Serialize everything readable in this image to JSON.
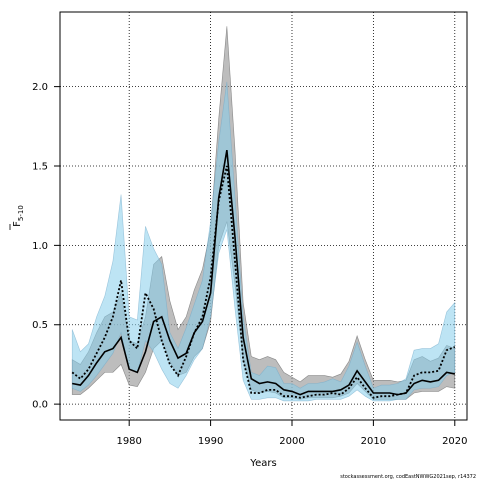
{
  "chart_data": {
    "type": "line",
    "title": "",
    "xlabel": "Years",
    "ylabel_main": "F",
    "ylabel_sub": "5-10",
    "caption": "stockassessment.org, codEastNWWG2021sep, r14372",
    "xlim": [
      1971.5,
      2021.5
    ],
    "ylim": [
      -0.1,
      2.47
    ],
    "xticks": [
      1980,
      1990,
      2000,
      2010,
      2020
    ],
    "yticks": [
      0.0,
      0.5,
      1.0,
      1.5,
      2.0
    ],
    "xtick_labels": [
      "1980",
      "1990",
      "2000",
      "2010",
      "2020"
    ],
    "ytick_labels": [
      "0.0",
      "0.5",
      "1.0",
      "1.5",
      "2.0"
    ],
    "grid": true,
    "x": [
      1973,
      1974,
      1975,
      1976,
      1977,
      1978,
      1979,
      1980,
      1981,
      1982,
      1983,
      1984,
      1985,
      1986,
      1987,
      1988,
      1989,
      1990,
      1991,
      1992,
      1993,
      1994,
      1995,
      1996,
      1997,
      1998,
      1999,
      2000,
      2001,
      2002,
      2003,
      2004,
      2005,
      2006,
      2007,
      2008,
      2009,
      2010,
      2011,
      2012,
      2013,
      2014,
      2015,
      2016,
      2017,
      2018,
      2019,
      2020
    ],
    "colors": {
      "series1_line": "#000000",
      "series1_band": "#9a9a9a",
      "series2_line": "#000000",
      "series2_band": "#87ceeb"
    },
    "series": [
      {
        "line_style": "solid",
        "values": [
          0.13,
          0.12,
          0.18,
          0.26,
          0.33,
          0.35,
          0.42,
          0.22,
          0.2,
          0.33,
          0.52,
          0.55,
          0.4,
          0.29,
          0.32,
          0.45,
          0.52,
          0.7,
          1.3,
          1.6,
          1.05,
          0.42,
          0.16,
          0.13,
          0.14,
          0.13,
          0.09,
          0.08,
          0.06,
          0.08,
          0.08,
          0.08,
          0.08,
          0.09,
          0.12,
          0.21,
          0.14,
          0.07,
          0.07,
          0.07,
          0.06,
          0.07,
          0.13,
          0.15,
          0.14,
          0.15,
          0.2,
          0.19
        ],
        "lower": [
          0.06,
          0.06,
          0.1,
          0.15,
          0.2,
          0.2,
          0.25,
          0.12,
          0.11,
          0.2,
          0.35,
          0.4,
          0.27,
          0.18,
          0.2,
          0.3,
          0.35,
          0.52,
          1.0,
          1.15,
          0.75,
          0.28,
          0.09,
          0.07,
          0.08,
          0.07,
          0.04,
          0.04,
          0.03,
          0.04,
          0.04,
          0.04,
          0.04,
          0.05,
          0.07,
          0.13,
          0.08,
          0.03,
          0.03,
          0.03,
          0.03,
          0.03,
          0.07,
          0.08,
          0.08,
          0.08,
          0.11,
          0.1
        ],
        "upper": [
          0.28,
          0.25,
          0.33,
          0.45,
          0.55,
          0.58,
          0.7,
          0.4,
          0.38,
          0.55,
          0.88,
          0.93,
          0.65,
          0.47,
          0.55,
          0.72,
          0.85,
          1.1,
          1.8,
          2.38,
          1.6,
          0.64,
          0.3,
          0.28,
          0.3,
          0.28,
          0.2,
          0.17,
          0.14,
          0.18,
          0.18,
          0.18,
          0.17,
          0.19,
          0.27,
          0.43,
          0.28,
          0.15,
          0.15,
          0.15,
          0.14,
          0.15,
          0.28,
          0.3,
          0.27,
          0.29,
          0.37,
          0.35
        ]
      },
      {
        "line_style": "dotted",
        "values": [
          0.2,
          0.16,
          0.22,
          0.32,
          0.42,
          0.55,
          0.78,
          0.4,
          0.35,
          0.7,
          0.6,
          0.4,
          0.25,
          0.18,
          0.3,
          0.45,
          0.55,
          0.8,
          1.28,
          1.5,
          0.9,
          0.28,
          0.07,
          0.07,
          0.09,
          0.09,
          0.05,
          0.05,
          0.04,
          0.05,
          0.06,
          0.06,
          0.07,
          0.06,
          0.1,
          0.17,
          0.1,
          0.04,
          0.05,
          0.05,
          0.06,
          0.07,
          0.18,
          0.2,
          0.2,
          0.21,
          0.34,
          0.36
        ],
        "lower": [
          0.1,
          0.08,
          0.12,
          0.18,
          0.25,
          0.32,
          0.45,
          0.22,
          0.2,
          0.4,
          0.33,
          0.22,
          0.13,
          0.1,
          0.18,
          0.28,
          0.35,
          0.55,
          0.95,
          1.1,
          0.6,
          0.15,
          0.03,
          0.03,
          0.04,
          0.04,
          0.02,
          0.02,
          0.02,
          0.02,
          0.03,
          0.03,
          0.03,
          0.03,
          0.05,
          0.09,
          0.05,
          0.02,
          0.02,
          0.02,
          0.03,
          0.03,
          0.09,
          0.1,
          0.1,
          0.11,
          0.18,
          0.2
        ],
        "upper": [
          0.47,
          0.33,
          0.38,
          0.55,
          0.68,
          0.9,
          1.32,
          0.55,
          0.53,
          1.12,
          0.98,
          0.88,
          0.45,
          0.35,
          0.48,
          0.63,
          0.78,
          1.15,
          1.65,
          2.03,
          1.3,
          0.55,
          0.2,
          0.18,
          0.24,
          0.23,
          0.13,
          0.13,
          0.1,
          0.13,
          0.13,
          0.14,
          0.16,
          0.14,
          0.24,
          0.39,
          0.24,
          0.1,
          0.12,
          0.12,
          0.13,
          0.16,
          0.34,
          0.35,
          0.35,
          0.38,
          0.58,
          0.64
        ]
      }
    ]
  }
}
